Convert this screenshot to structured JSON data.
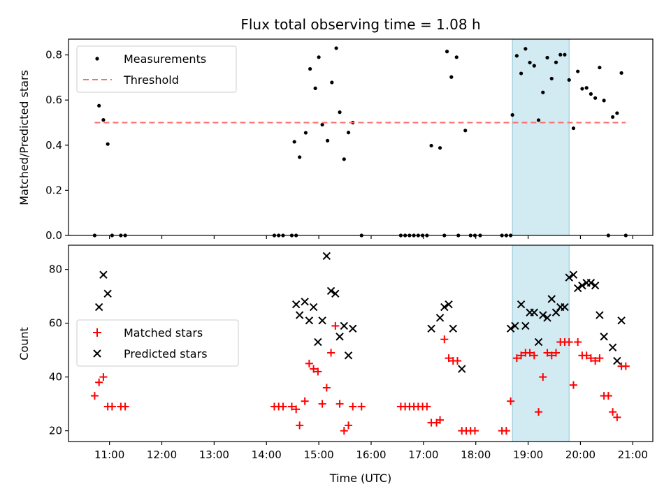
{
  "chart_data": [
    {
      "type": "scatter",
      "title": "Flux total observing time = 1.08 h",
      "xlabel": "",
      "ylabel": "Matched/Predicted stars",
      "xlim": [
        "10:13",
        "21:23"
      ],
      "ylim": [
        0,
        0.87
      ],
      "yticks": [
        "0.0",
        "0.2",
        "0.4",
        "0.6",
        "0.8"
      ],
      "ytick_values": [
        0,
        0.2,
        0.4,
        0.6,
        0.8
      ],
      "grid": false,
      "legend": "top-left",
      "highlight_band": {
        "x_start": "18:42",
        "x_end": "19:47",
        "color": "#add8e6"
      },
      "series": [
        {
          "name": "Measurements",
          "style": "dot",
          "color": "#000000",
          "points": [
            [
              "10:43",
              0.0
            ],
            [
              "10:48",
              0.575
            ],
            [
              "10:53",
              0.512
            ],
            [
              "10:58",
              0.405
            ],
            [
              "11:03",
              0.0
            ],
            [
              "11:13",
              0.0
            ],
            [
              "11:18",
              0.0
            ],
            [
              "14:09",
              0.0
            ],
            [
              "14:14",
              0.0
            ],
            [
              "14:19",
              0.0
            ],
            [
              "14:29",
              0.0
            ],
            [
              "14:34",
              0.0
            ],
            [
              "14:32",
              0.415
            ],
            [
              "14:38",
              0.347
            ],
            [
              "14:45",
              0.455
            ],
            [
              "14:50",
              0.738
            ],
            [
              "14:56",
              0.652
            ],
            [
              "15:00",
              0.79
            ],
            [
              "15:04",
              0.491
            ],
            [
              "15:10",
              0.42
            ],
            [
              "15:15",
              0.678
            ],
            [
              "15:20",
              0.83
            ],
            [
              "15:24",
              0.546
            ],
            [
              "15:29",
              0.338
            ],
            [
              "15:34",
              0.456
            ],
            [
              "15:39",
              0.5
            ],
            [
              "15:49",
              0.0
            ],
            [
              "16:34",
              0.0
            ],
            [
              "16:39",
              0.0
            ],
            [
              "16:44",
              0.0
            ],
            [
              "16:49",
              0.0
            ],
            [
              "16:54",
              0.0
            ],
            [
              "16:59",
              0.0
            ],
            [
              "17:04",
              0.0
            ],
            [
              "17:09",
              0.398
            ],
            [
              "17:19",
              0.388
            ],
            [
              "17:24",
              0.0
            ],
            [
              "17:27",
              0.815
            ],
            [
              "17:32",
              0.702
            ],
            [
              "17:38",
              0.79
            ],
            [
              "17:40",
              0.0
            ],
            [
              "17:48",
              0.465
            ],
            [
              "17:54",
              0.0
            ],
            [
              "17:59",
              0.0
            ],
            [
              "18:05",
              0.0
            ],
            [
              "18:30",
              0.0
            ],
            [
              "18:35",
              0.0
            ],
            [
              "18:40",
              0.0
            ],
            [
              "18:42",
              0.534
            ],
            [
              "18:47",
              0.796
            ],
            [
              "18:52",
              0.718
            ],
            [
              "18:57",
              0.827
            ],
            [
              "19:02",
              0.766
            ],
            [
              "19:07",
              0.752
            ],
            [
              "19:12",
              0.511
            ],
            [
              "19:17",
              0.634
            ],
            [
              "19:22",
              0.788
            ],
            [
              "19:27",
              0.695
            ],
            [
              "19:32",
              0.767
            ],
            [
              "19:37",
              0.801
            ],
            [
              "19:42",
              0.801
            ],
            [
              "19:47",
              0.689
            ],
            [
              "19:52",
              0.475
            ],
            [
              "19:57",
              0.727
            ],
            [
              "20:02",
              0.65
            ],
            [
              "20:07",
              0.654
            ],
            [
              "20:12",
              0.627
            ],
            [
              "20:17",
              0.609
            ],
            [
              "20:22",
              0.744
            ],
            [
              "20:27",
              0.598
            ],
            [
              "20:32",
              0.0
            ],
            [
              "20:37",
              0.525
            ],
            [
              "20:42",
              0.542
            ],
            [
              "20:47",
              0.72
            ],
            [
              "20:52",
              0.0
            ]
          ]
        },
        {
          "name": "Threshold",
          "style": "dashed-line",
          "color": "#ff6b6b",
          "points": [
            [
              "10:43",
              0.5
            ],
            [
              "20:52",
              0.5
            ]
          ]
        }
      ]
    },
    {
      "type": "scatter",
      "title": "",
      "xlabel": "Time (UTC)",
      "ylabel": "Count",
      "xlim": [
        "10:13",
        "21:23"
      ],
      "ylim": [
        16,
        89
      ],
      "yticks": [
        "20",
        "40",
        "60",
        "80"
      ],
      "ytick_values": [
        20,
        40,
        60,
        80
      ],
      "xticks": [
        "11:00",
        "12:00",
        "13:00",
        "14:00",
        "15:00",
        "16:00",
        "17:00",
        "18:00",
        "19:00",
        "20:00",
        "21:00"
      ],
      "grid": false,
      "legend": "center-left",
      "highlight_band": {
        "x_start": "18:42",
        "x_end": "19:47",
        "color": "#add8e6"
      },
      "series": [
        {
          "name": "Matched stars",
          "style": "plus",
          "color": "#ff0000",
          "points": [
            [
              "10:43",
              33
            ],
            [
              "10:48",
              38
            ],
            [
              "10:53",
              40
            ],
            [
              "10:58",
              29
            ],
            [
              "11:03",
              29
            ],
            [
              "11:13",
              29
            ],
            [
              "11:18",
              29
            ],
            [
              "14:09",
              29
            ],
            [
              "14:14",
              29
            ],
            [
              "14:19",
              29
            ],
            [
              "14:29",
              29
            ],
            [
              "14:34",
              28
            ],
            [
              "14:38",
              22
            ],
            [
              "14:44",
              31
            ],
            [
              "14:49",
              45
            ],
            [
              "14:54",
              43
            ],
            [
              "14:59",
              42
            ],
            [
              "15:04",
              30
            ],
            [
              "15:09",
              36
            ],
            [
              "15:14",
              49
            ],
            [
              "15:19",
              59
            ],
            [
              "15:24",
              30
            ],
            [
              "15:29",
              20
            ],
            [
              "15:34",
              22
            ],
            [
              "15:39",
              29
            ],
            [
              "15:49",
              29
            ],
            [
              "16:34",
              29
            ],
            [
              "16:39",
              29
            ],
            [
              "16:44",
              29
            ],
            [
              "16:49",
              29
            ],
            [
              "16:54",
              29
            ],
            [
              "16:59",
              29
            ],
            [
              "17:04",
              29
            ],
            [
              "17:09",
              23
            ],
            [
              "17:15",
              23
            ],
            [
              "17:19",
              24
            ],
            [
              "17:24",
              54
            ],
            [
              "17:29",
              47
            ],
            [
              "17:34",
              46
            ],
            [
              "17:39",
              46
            ],
            [
              "17:44",
              20
            ],
            [
              "17:49",
              20
            ],
            [
              "17:54",
              20
            ],
            [
              "17:59",
              20
            ],
            [
              "18:30",
              20
            ],
            [
              "18:35",
              20
            ],
            [
              "18:40",
              31
            ],
            [
              "18:47",
              47
            ],
            [
              "18:52",
              48
            ],
            [
              "18:57",
              49
            ],
            [
              "19:02",
              49
            ],
            [
              "19:07",
              48
            ],
            [
              "19:12",
              27
            ],
            [
              "19:17",
              40
            ],
            [
              "19:22",
              49
            ],
            [
              "19:27",
              48
            ],
            [
              "19:32",
              49
            ],
            [
              "19:37",
              53
            ],
            [
              "19:42",
              53
            ],
            [
              "19:47",
              53
            ],
            [
              "19:52",
              37
            ],
            [
              "19:57",
              53
            ],
            [
              "20:02",
              48
            ],
            [
              "20:07",
              48
            ],
            [
              "20:12",
              47
            ],
            [
              "20:17",
              46
            ],
            [
              "20:22",
              47
            ],
            [
              "20:27",
              33
            ],
            [
              "20:32",
              33
            ],
            [
              "20:37",
              27
            ],
            [
              "20:42",
              25
            ],
            [
              "20:47",
              44
            ],
            [
              "20:52",
              44
            ]
          ]
        },
        {
          "name": "Predicted stars",
          "style": "x",
          "color": "#000000",
          "points": [
            [
              "10:48",
              66
            ],
            [
              "10:53",
              78
            ],
            [
              "10:58",
              71
            ],
            [
              "14:34",
              67
            ],
            [
              "14:38",
              63
            ],
            [
              "14:44",
              68
            ],
            [
              "14:49",
              61
            ],
            [
              "14:54",
              66
            ],
            [
              "14:59",
              53
            ],
            [
              "15:04",
              61
            ],
            [
              "15:09",
              85
            ],
            [
              "15:14",
              72
            ],
            [
              "15:19",
              71
            ],
            [
              "15:24",
              55
            ],
            [
              "15:29",
              59
            ],
            [
              "15:34",
              48
            ],
            [
              "15:39",
              58
            ],
            [
              "17:09",
              58
            ],
            [
              "17:19",
              62
            ],
            [
              "17:24",
              66
            ],
            [
              "17:29",
              67
            ],
            [
              "17:34",
              58
            ],
            [
              "17:44",
              43
            ],
            [
              "18:40",
              58
            ],
            [
              "18:45",
              59
            ],
            [
              "18:52",
              67
            ],
            [
              "18:57",
              59
            ],
            [
              "19:02",
              64
            ],
            [
              "19:07",
              64
            ],
            [
              "19:12",
              53
            ],
            [
              "19:17",
              63
            ],
            [
              "19:22",
              62
            ],
            [
              "19:27",
              69
            ],
            [
              "19:32",
              64
            ],
            [
              "19:37",
              66
            ],
            [
              "19:42",
              66
            ],
            [
              "19:47",
              77
            ],
            [
              "19:52",
              78
            ],
            [
              "19:57",
              73
            ],
            [
              "20:02",
              74
            ],
            [
              "20:07",
              75
            ],
            [
              "20:12",
              75
            ],
            [
              "20:17",
              74
            ],
            [
              "20:22",
              63
            ],
            [
              "20:27",
              55
            ],
            [
              "20:37",
              51
            ],
            [
              "20:42",
              46
            ],
            [
              "20:47",
              61
            ]
          ]
        }
      ]
    }
  ]
}
